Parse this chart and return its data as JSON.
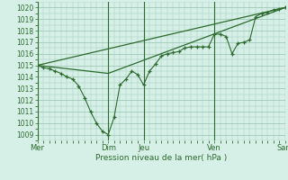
{
  "bg_color": "#d6f0e8",
  "grid_color": "#a0c8b8",
  "line_color": "#2d6a2d",
  "marker_color": "#2d6a2d",
  "xlabel": "Pression niveau de la mer( hPa )",
  "ylim": [
    1008.5,
    1020.5
  ],
  "yticks": [
    1009,
    1010,
    1011,
    1012,
    1013,
    1014,
    1015,
    1016,
    1017,
    1018,
    1019,
    1020
  ],
  "xtick_labels": [
    "Mer",
    "",
    "Dim",
    "Jeu",
    "",
    "Ven",
    "",
    "Sam"
  ],
  "xtick_positions": [
    0,
    6,
    12,
    18,
    24,
    30,
    36,
    42
  ],
  "day_vlines": [
    0,
    12,
    18,
    30,
    42
  ],
  "day_labels": [
    "Mer",
    "Dim",
    "Jeu",
    "Ven",
    "Sam"
  ],
  "day_positions": [
    0,
    12,
    18,
    30,
    42
  ],
  "line1_x": [
    0,
    1,
    2,
    3,
    4,
    5,
    6,
    7,
    8,
    9,
    10,
    11,
    12,
    13,
    14,
    15,
    16,
    17,
    18,
    19,
    20,
    21,
    22,
    23,
    24,
    25,
    26,
    27,
    28,
    29,
    30,
    31,
    32,
    33,
    34,
    35,
    36,
    37,
    38,
    39,
    40,
    41,
    42
  ],
  "line1_y": [
    1015.0,
    1014.8,
    1014.7,
    1014.5,
    1014.3,
    1014.0,
    1013.8,
    1013.2,
    1012.2,
    1011.0,
    1010.0,
    1009.3,
    1009.0,
    1010.5,
    1013.3,
    1013.8,
    1014.5,
    1014.2,
    1013.3,
    1014.5,
    1015.1,
    1015.8,
    1016.0,
    1016.1,
    1016.2,
    1016.5,
    1016.6,
    1016.6,
    1016.6,
    1016.6,
    1017.7,
    1017.7,
    1017.5,
    1016.0,
    1016.9,
    1017.0,
    1017.2,
    1019.2,
    1019.5,
    1019.6,
    1019.8,
    1019.9,
    1020.0
  ],
  "line2_x": [
    0,
    42
  ],
  "line2_y": [
    1015.0,
    1020.0
  ],
  "line3_x": [
    0,
    12,
    42
  ],
  "line3_y": [
    1015.0,
    1014.3,
    1020.0
  ]
}
